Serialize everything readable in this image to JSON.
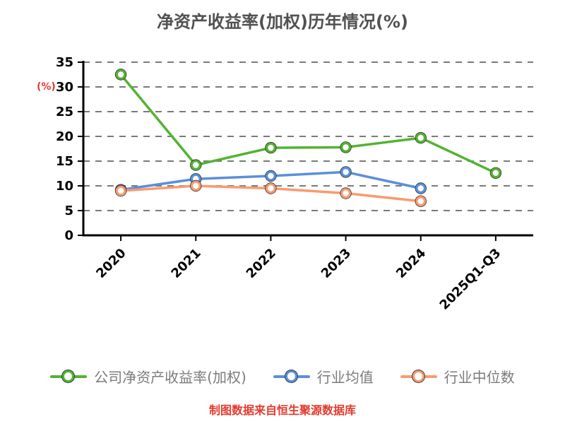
{
  "chart_data": {
    "type": "line",
    "title": "净资产收益率(加权)历年情况(%)",
    "ylabel": "(%)",
    "footer": "制图数据来自恒生聚源数据库",
    "categories": [
      "2020",
      "2021",
      "2022",
      "2023",
      "2024",
      "2025Q1-Q3"
    ],
    "yticks": [
      0,
      5,
      10,
      15,
      20,
      25,
      30,
      35
    ],
    "ylim": [
      0,
      35
    ],
    "grid": "horizontal-dashed",
    "legend_position": "bottom",
    "series": [
      {
        "name": "公司净资产收益率(加权)",
        "color": "#53b332",
        "values": [
          32.5,
          14.2,
          17.7,
          17.8,
          19.7,
          12.6
        ]
      },
      {
        "name": "行业均值",
        "color": "#5a8fdc",
        "values": [
          9.2,
          11.4,
          12.0,
          12.8,
          9.5,
          null
        ]
      },
      {
        "name": "行业中位数",
        "color": "#f89b70",
        "values": [
          9.0,
          10.0,
          9.5,
          8.5,
          6.9,
          null
        ]
      }
    ],
    "colors": {
      "title": "#515151",
      "axis": "#000000",
      "gridline": "#7a7a7a",
      "tick_label": "#000000",
      "legend_label": "#7b7b7b",
      "accent_red": "#e43a2e"
    }
  }
}
